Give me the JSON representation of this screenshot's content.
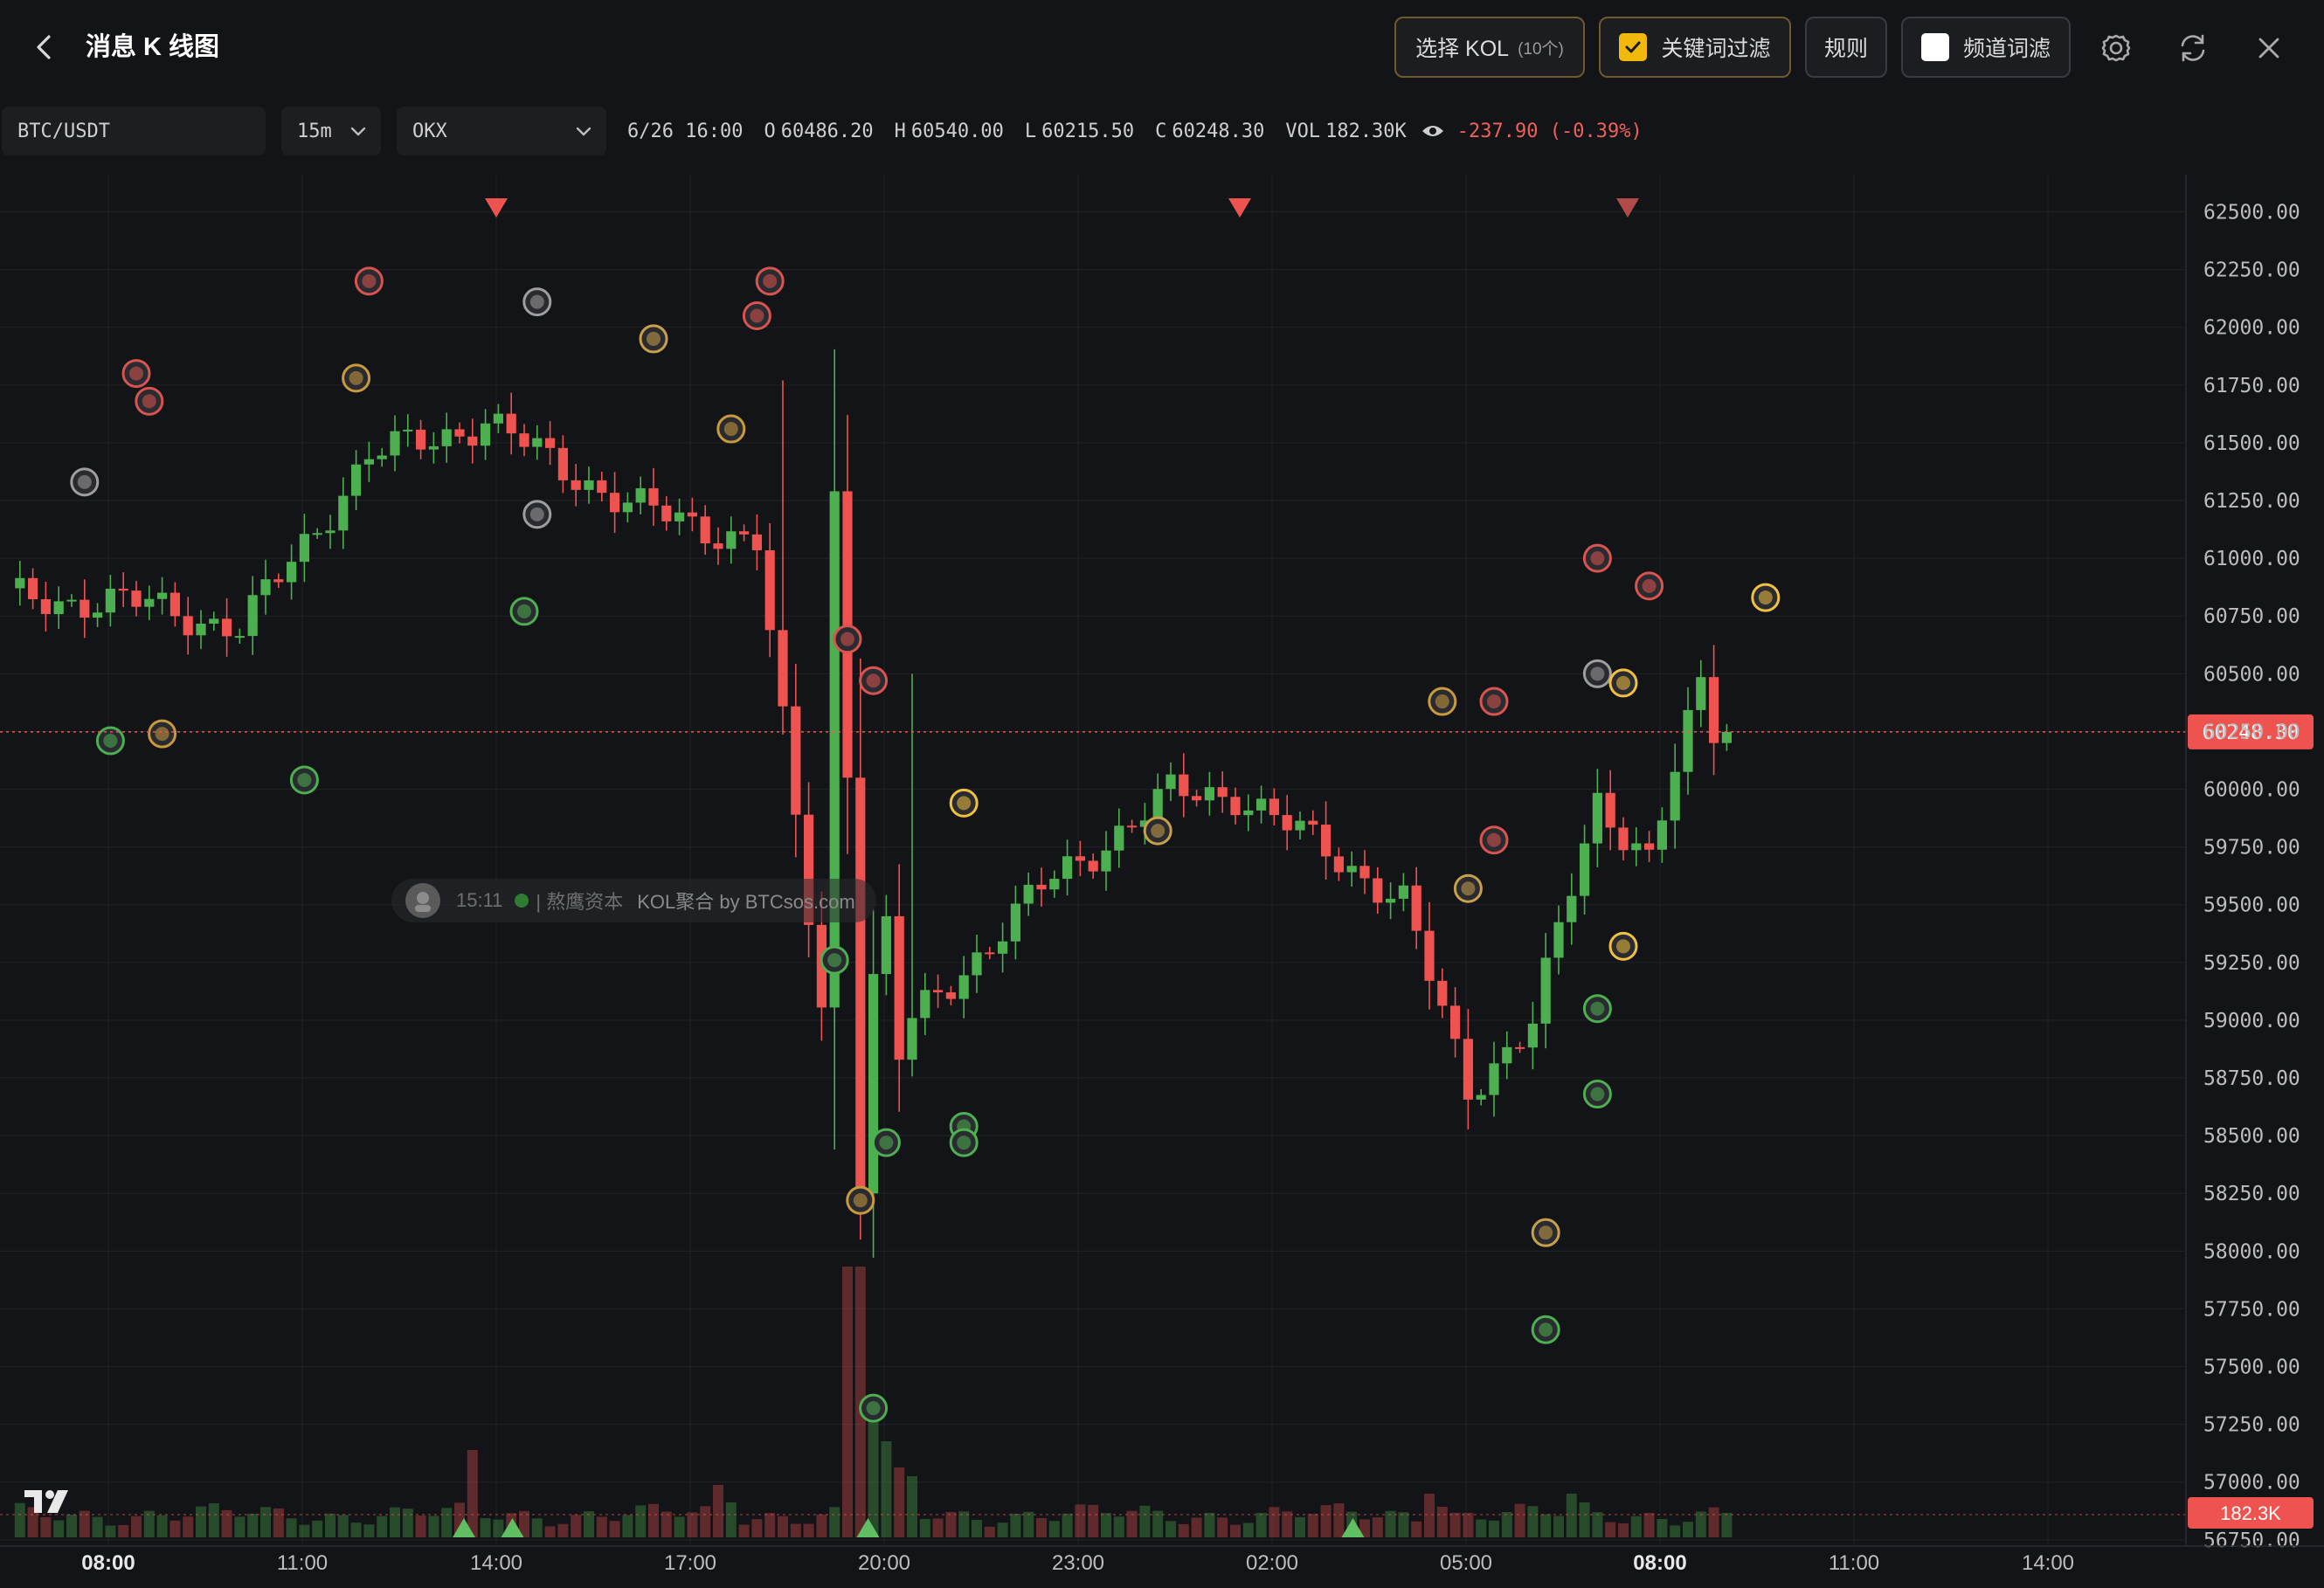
{
  "header": {
    "title": "消息 K 线图",
    "select_kol_label": "选择 KOL",
    "select_kol_count": "(10个)",
    "keyword_filter_label": "关键词过滤",
    "keyword_filter_checked": true,
    "rules_label": "规则",
    "channel_filter_label": "频道词滤",
    "channel_filter_checked": false
  },
  "toolbar": {
    "symbol": "BTC/USDT",
    "interval": "15m",
    "exchange": "OKX",
    "datetime": "6/26 16:00",
    "open_label": "O",
    "open": "60486.20",
    "high_label": "H",
    "high": "60540.00",
    "low_label": "L",
    "low": "60215.50",
    "close_label": "C",
    "close": "60248.30",
    "vol_label": "VOL",
    "vol": "182.30K",
    "change": "-237.90 (-0.39%)"
  },
  "watermark": {
    "time": "15:11",
    "source": "| 熬鹰资本",
    "brand": "KOL聚合 by BTCsos.com"
  },
  "colors": {
    "up": "#4caf50",
    "down": "#ef5350",
    "background": "#131417",
    "accent": "#f0b90b"
  },
  "chart_data": {
    "type": "candlestick",
    "x_ticks": [
      "08:00",
      "11:00",
      "14:00",
      "17:00",
      "20:00",
      "23:00",
      "02:00",
      "05:00",
      "08:00",
      "11:00",
      "14:00"
    ],
    "y_ticks": [
      "62500.00",
      "62250.00",
      "62000.00",
      "61750.00",
      "61500.00",
      "61250.00",
      "61000.00",
      "60750.00",
      "60500.00",
      "60250.00",
      "60000.00",
      "59750.00",
      "59500.00",
      "59250.00",
      "59000.00",
      "58750.00",
      "58500.00",
      "58250.00",
      "58000.00",
      "57750.00",
      "57500.00",
      "57250.00",
      "57000.00",
      "56750.00"
    ],
    "ylim": [
      56670,
      62570
    ],
    "current_price_label": "60248.30",
    "current_price": 60248.3,
    "volume_label": "182.3K",
    "grid": true,
    "anchors": [
      [
        60870,
        60800,
        11
      ],
      [
        61080,
        60690,
        18
      ],
      [
        60720,
        61440,
        28
      ],
      [
        61780,
        61590,
        37
      ],
      [
        61560,
        61230,
        48
      ],
      [
        61290,
        61070,
        58
      ],
      [
        60200,
        58250,
        65
      ],
      [
        59380,
        58990,
        70
      ],
      [
        59600,
        59570,
        80
      ],
      [
        59850,
        59980,
        90
      ],
      [
        60190,
        59980,
        95
      ],
      [
        59820,
        59700,
        103
      ],
      [
        59600,
        59510,
        108
      ],
      [
        58790,
        58700,
        113
      ],
      [
        58560,
        58990,
        118
      ],
      [
        59890,
        59950,
        123
      ],
      [
        59900,
        59700,
        127
      ],
      [
        60450,
        60440,
        131
      ],
      [
        60250,
        60250,
        132
      ]
    ],
    "vol_spikes": [
      [
        36,
        100
      ],
      [
        65,
        0.9
      ],
      [
        66,
        180
      ],
      [
        67,
        150
      ],
      [
        68,
        110
      ],
      [
        69,
        80
      ],
      [
        55,
        60
      ],
      [
        56,
        40
      ],
      [
        70,
        70
      ],
      [
        110,
        50
      ],
      [
        111,
        35
      ],
      [
        121,
        50
      ],
      [
        122,
        40
      ]
    ],
    "markers_down": [
      {
        "x": "07:30",
        "color": "#b24b47"
      },
      {
        "x": "14:00",
        "color": "#ef5350"
      },
      {
        "x": "01:30",
        "color": "#ef5350"
      }
    ],
    "markers_up": [
      {
        "x": "13:30"
      },
      {
        "x": "14:15"
      },
      {
        "x": "19:45"
      },
      {
        "x": "03:15"
      }
    ],
    "kol_events": [
      {
        "bar": 6,
        "price": 61330,
        "color": "#9e9e9e"
      },
      {
        "bar": 10,
        "price": 61800,
        "color": "#d9534f"
      },
      {
        "bar": 11,
        "price": 61680,
        "color": "#d9534f"
      },
      {
        "bar": 8,
        "price": 60210,
        "color": "#4caf50"
      },
      {
        "bar": 12,
        "price": 60240,
        "color": "#c89a3c"
      },
      {
        "bar": 23,
        "price": 60040,
        "color": "#4caf50"
      },
      {
        "bar": 28,
        "price": 62200,
        "color": "#d9534f"
      },
      {
        "bar": 27,
        "price": 61780,
        "color": "#c89a3c"
      },
      {
        "bar": 41,
        "price": 62110,
        "color": "#9e9e9e"
      },
      {
        "bar": 41,
        "price": 61190,
        "color": "#9e9e9e"
      },
      {
        "bar": 40,
        "price": 60770,
        "color": "#4caf50"
      },
      {
        "bar": 50,
        "price": 61950,
        "color": "#c8a04a"
      },
      {
        "bar": 56,
        "price": 61560,
        "color": "#c89a3c"
      },
      {
        "bar": 58,
        "price": 62050,
        "color": "#d9534f"
      },
      {
        "bar": 59,
        "price": 62200,
        "color": "#d9534f"
      },
      {
        "bar": 65,
        "price": 60650,
        "color": "#d9534f"
      },
      {
        "bar": 67,
        "price": 60470,
        "color": "#d9534f"
      },
      {
        "bar": 64,
        "price": 59260,
        "color": "#4caf50"
      },
      {
        "bar": 66,
        "price": 58220,
        "color": "#c89a3c"
      },
      {
        "bar": 67,
        "price": 57320,
        "color": "#4caf50"
      },
      {
        "bar": 68,
        "price": 58470,
        "color": "#4caf50"
      },
      {
        "bar": 74,
        "price": 59940,
        "color": "#f0c040"
      },
      {
        "bar": 74,
        "price": 58540,
        "color": "#4caf50"
      },
      {
        "bar": 74,
        "price": 58470,
        "color": "#4caf50"
      },
      {
        "bar": 89,
        "price": 59820,
        "color": "#c8a04a"
      },
      {
        "bar": 111,
        "price": 60380,
        "color": "#c89a3c"
      },
      {
        "bar": 115,
        "price": 60380,
        "color": "#d9534f"
      },
      {
        "bar": 115,
        "price": 59780,
        "color": "#d9534f"
      },
      {
        "bar": 113,
        "price": 59570,
        "color": "#c8a04a"
      },
      {
        "bar": 123,
        "price": 60500,
        "color": "#9e9e9e"
      },
      {
        "bar": 123,
        "price": 61000,
        "color": "#d9534f"
      },
      {
        "bar": 127,
        "price": 60880,
        "color": "#d9534f"
      },
      {
        "bar": 125,
        "price": 60460,
        "color": "#f0c040"
      },
      {
        "bar": 125,
        "price": 59320,
        "color": "#f0c040"
      },
      {
        "bar": 123,
        "price": 59050,
        "color": "#4caf50"
      },
      {
        "bar": 123,
        "price": 58680,
        "color": "#4caf50"
      },
      {
        "bar": 119,
        "price": 58080,
        "color": "#c8a04a"
      },
      {
        "bar": 119,
        "price": 57660,
        "color": "#4caf50"
      },
      {
        "bar": 136,
        "price": 60830,
        "color": "#f0c040"
      }
    ]
  }
}
